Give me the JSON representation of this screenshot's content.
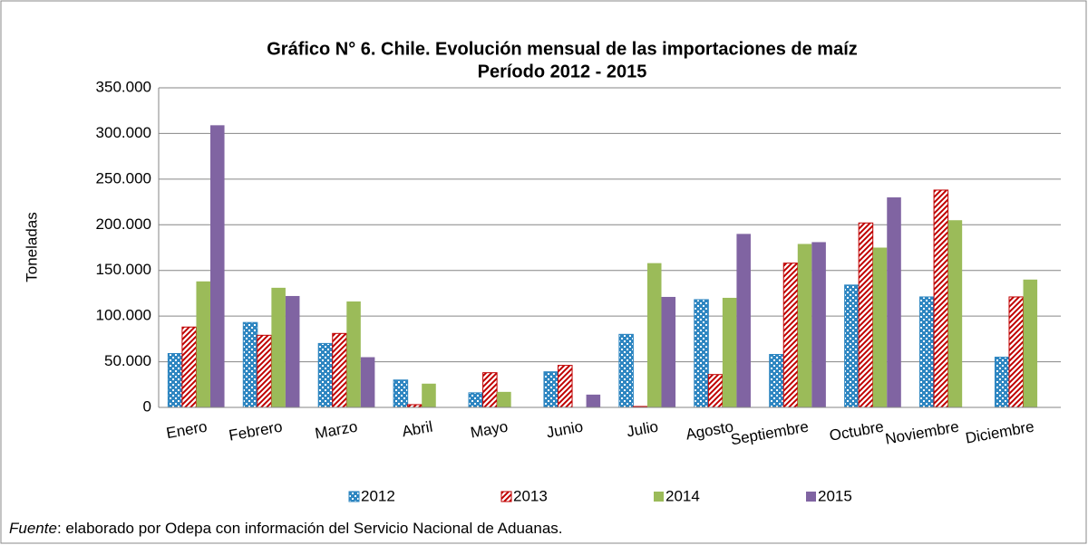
{
  "chart_data": {
    "type": "bar",
    "title": "Gráfico N° 6. Chile. Evolución mensual de las importaciones de maíz",
    "subtitle": "Período  2012 - 2015",
    "y_label": "Toneladas",
    "categories": [
      "Enero",
      "Febrero",
      "Marzo",
      "Abril",
      "Mayo",
      "Junio",
      "Julio",
      "Agosto",
      "Septiembre",
      "Octubre",
      "Noviembre",
      "Diciembre"
    ],
    "series": [
      {
        "name": "2012",
        "color": "#2e86c1",
        "pattern": "dots",
        "values": [
          59000,
          93000,
          70000,
          30000,
          16000,
          39000,
          80000,
          118000,
          58000,
          134000,
          121000,
          55000
        ]
      },
      {
        "name": "2013",
        "color": "#c00000",
        "pattern": "hatch",
        "values": [
          88000,
          79000,
          81000,
          3000,
          38000,
          46000,
          1000,
          36000,
          158000,
          202000,
          238000,
          121000
        ]
      },
      {
        "name": "2014",
        "color": "#9bbb59",
        "values": [
          138000,
          131000,
          116000,
          26000,
          17000,
          null,
          158000,
          120000,
          179000,
          175000,
          205000,
          140000
        ]
      },
      {
        "name": "2015",
        "color": "#8064a2",
        "values": [
          309000,
          122000,
          55000,
          null,
          null,
          14000,
          121000,
          190000,
          181000,
          230000,
          null,
          null
        ]
      }
    ],
    "ylim": [
      0,
      350000
    ],
    "yticks": [
      0,
      {
        "value": 50000,
        "label": "50.000"
      },
      {
        "value": 100000,
        "label": "100.000"
      },
      {
        "value": 150000,
        "label": "150.000"
      },
      {
        "value": 200000,
        "label": "200.000"
      },
      {
        "value": 250000,
        "label": "250.000"
      },
      {
        "value": 300000,
        "label": "300.000"
      },
      {
        "value": 350000,
        "label": "350.000"
      }
    ],
    "grid": true,
    "legend": "bottom",
    "note_label": "Fuente",
    "note": ": elaborado por Odepa con información del Servicio Nacional de Aduanas."
  }
}
